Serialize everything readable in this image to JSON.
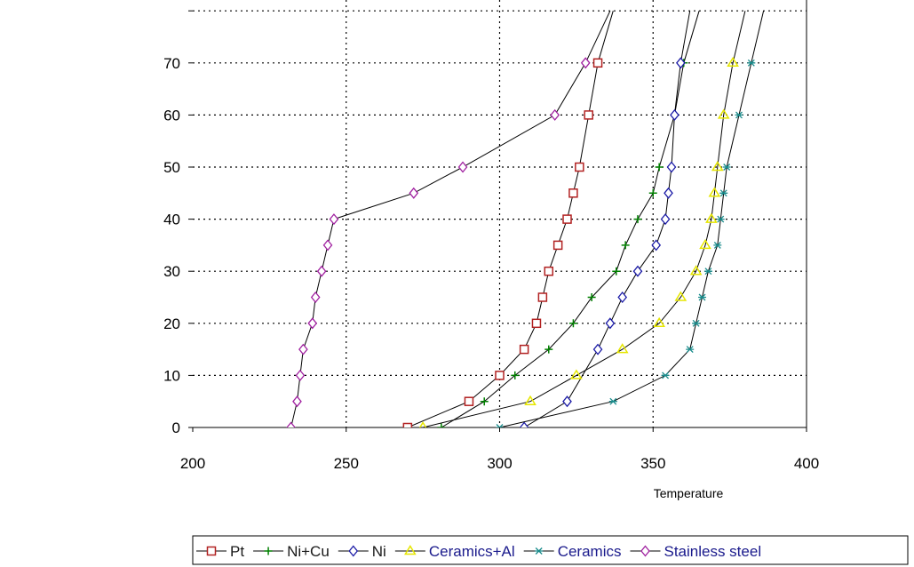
{
  "chart_data": {
    "type": "line",
    "xlabel": "Temperature",
    "ylabel": "",
    "xlim": [
      200,
      400
    ],
    "ylim": [
      0,
      80
    ],
    "x_ticks": [
      200,
      250,
      300,
      350,
      400
    ],
    "y_ticks": [
      0,
      10,
      20,
      30,
      40,
      50,
      60,
      70
    ],
    "grid": true,
    "legend_position": "bottom",
    "series": [
      {
        "name": "Pt",
        "color": "#b22222",
        "marker": "square",
        "points": [
          [
            270,
            0
          ],
          [
            290,
            5
          ],
          [
            300,
            10
          ],
          [
            308,
            15
          ],
          [
            312,
            20
          ],
          [
            314,
            25
          ],
          [
            316,
            30
          ],
          [
            319,
            35
          ],
          [
            322,
            40
          ],
          [
            324,
            45
          ],
          [
            326,
            50
          ],
          [
            329,
            60
          ],
          [
            332,
            70
          ],
          [
            337,
            80
          ]
        ]
      },
      {
        "name": "Ni+Cu",
        "color": "#008000",
        "marker": "plus",
        "points": [
          [
            281,
            0
          ],
          [
            295,
            5
          ],
          [
            305,
            10
          ],
          [
            316,
            15
          ],
          [
            324,
            20
          ],
          [
            330,
            25
          ],
          [
            338,
            30
          ],
          [
            341,
            35
          ],
          [
            345,
            40
          ],
          [
            350,
            45
          ],
          [
            352,
            50
          ],
          [
            357,
            60
          ],
          [
            360,
            70
          ],
          [
            365,
            80
          ]
        ]
      },
      {
        "name": "Ni",
        "color": "#1a1aa6",
        "marker": "diamond",
        "points": [
          [
            308,
            0
          ],
          [
            322,
            5
          ],
          [
            332,
            15
          ],
          [
            336,
            20
          ],
          [
            340,
            25
          ],
          [
            345,
            30
          ],
          [
            351,
            35
          ],
          [
            354,
            40
          ],
          [
            355,
            45
          ],
          [
            356,
            50
          ],
          [
            357,
            60
          ],
          [
            359,
            70
          ],
          [
            362,
            80
          ]
        ]
      },
      {
        "name": "Ceramics+Al",
        "color": "#e6e600",
        "marker": "triangle",
        "points": [
          [
            275,
            0
          ],
          [
            310,
            5
          ],
          [
            325,
            10
          ],
          [
            340,
            15
          ],
          [
            352,
            20
          ],
          [
            359,
            25
          ],
          [
            364,
            30
          ],
          [
            367,
            35
          ],
          [
            369,
            40
          ],
          [
            370,
            45
          ],
          [
            371,
            50
          ],
          [
            373,
            60
          ],
          [
            376,
            70
          ],
          [
            380,
            80
          ]
        ]
      },
      {
        "name": "Ceramics",
        "color": "#1a8c8c",
        "marker": "star",
        "points": [
          [
            300,
            0
          ],
          [
            337,
            5
          ],
          [
            354,
            10
          ],
          [
            362,
            15
          ],
          [
            364,
            20
          ],
          [
            366,
            25
          ],
          [
            368,
            30
          ],
          [
            371,
            35
          ],
          [
            372,
            40
          ],
          [
            373,
            45
          ],
          [
            374,
            50
          ],
          [
            378,
            60
          ],
          [
            382,
            70
          ],
          [
            386,
            80
          ]
        ]
      },
      {
        "name": "Stainless steel",
        "color": "#a020a0",
        "marker": "diamond",
        "points": [
          [
            232,
            0
          ],
          [
            234,
            5
          ],
          [
            235,
            10
          ],
          [
            236,
            15
          ],
          [
            239,
            20
          ],
          [
            240,
            25
          ],
          [
            242,
            30
          ],
          [
            244,
            35
          ],
          [
            246,
            40
          ],
          [
            272,
            45
          ],
          [
            288,
            50
          ],
          [
            318,
            60
          ],
          [
            328,
            70
          ],
          [
            336,
            80
          ]
        ]
      }
    ]
  },
  "legend": {
    "items": [
      {
        "label": "Pt",
        "color": "#1a1a1a",
        "marker_color": "#b22222"
      },
      {
        "label": "Ni+Cu",
        "color": "#1a1a1a",
        "marker_color": "#008000"
      },
      {
        "label": "Ni",
        "color": "#1a1a1a",
        "marker_color": "#1a1aa6"
      },
      {
        "label": "Ceramics+Al",
        "color": "#1a1a8c",
        "marker_color": "#e6e600"
      },
      {
        "label": "Ceramics",
        "color": "#1a1a8c",
        "marker_color": "#1a8c8c"
      },
      {
        "label": "Stainless steel",
        "color": "#1a1a8c",
        "marker_color": "#a020a0"
      }
    ]
  }
}
